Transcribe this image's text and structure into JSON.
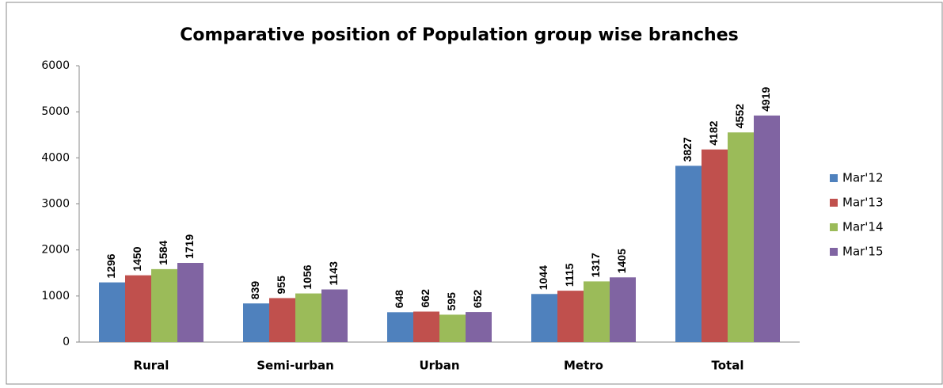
{
  "chart_data": {
    "type": "bar",
    "title": "Comparative position of Population group wise branches",
    "categories": [
      "Rural",
      "Semi-urban",
      "Urban",
      "Metro",
      "Total"
    ],
    "series": [
      {
        "name": "Mar'12",
        "color": "#4f81bd",
        "values": [
          1296,
          839,
          648,
          1044,
          3827
        ]
      },
      {
        "name": "Mar'13",
        "color": "#c0504d",
        "values": [
          1450,
          955,
          662,
          1115,
          4182
        ]
      },
      {
        "name": "Mar'14",
        "color": "#9bbb59",
        "values": [
          1584,
          1056,
          595,
          1317,
          4552
        ]
      },
      {
        "name": "Mar'15",
        "color": "#8064a2",
        "values": [
          1719,
          1143,
          652,
          1405,
          4919
        ]
      }
    ],
    "ylim": [
      0,
      6000
    ],
    "yticks": [
      0,
      1000,
      2000,
      3000,
      4000,
      5000,
      6000
    ],
    "legend": "right"
  }
}
